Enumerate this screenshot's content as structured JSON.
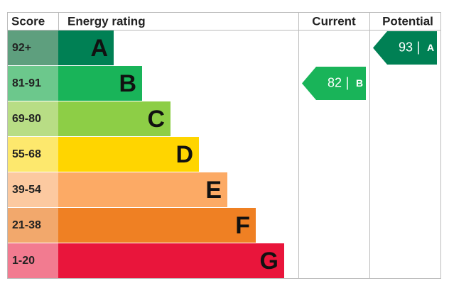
{
  "header": {
    "score": "Score",
    "rating": "Energy rating",
    "current": "Current",
    "potential": "Potential"
  },
  "bands": [
    {
      "score": "92+",
      "letter": "A",
      "color": "#008054",
      "score_color": "#5e9f7e"
    },
    {
      "score": "81-91",
      "letter": "B",
      "color": "#19b459",
      "score_color": "#6cc88c"
    },
    {
      "score": "69-80",
      "letter": "C",
      "color": "#8dce46",
      "score_color": "#b8dd85"
    },
    {
      "score": "55-68",
      "letter": "D",
      "color": "#ffd500",
      "score_color": "#fde86d"
    },
    {
      "score": "39-54",
      "letter": "E",
      "color": "#fcaa65",
      "score_color": "#fcc9a0"
    },
    {
      "score": "21-38",
      "letter": "F",
      "color": "#ef8023",
      "score_color": "#f2a86c"
    },
    {
      "score": "1-20",
      "letter": "G",
      "color": "#e9153b",
      "score_color": "#f27b90"
    }
  ],
  "current": {
    "value": 82,
    "letter": "B",
    "color": "#19b459"
  },
  "potential": {
    "value": 93,
    "letter": "A",
    "color": "#008054"
  }
}
